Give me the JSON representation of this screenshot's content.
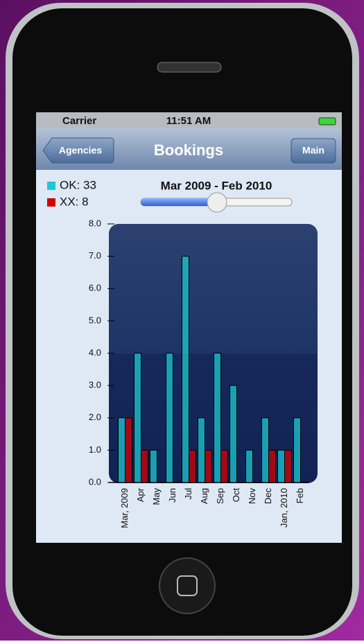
{
  "status_bar": {
    "carrier": "Carrier",
    "time": "11:51 AM"
  },
  "nav_bar": {
    "back_button": "Agencies",
    "title": "Bookings",
    "right_button": "Main"
  },
  "chart_data": {
    "type": "bar",
    "subtitle": "Mar 2009 - Feb 2010",
    "categories": [
      "Mar, 2009",
      "Apr",
      "May",
      "Jun",
      "Jul",
      "Aug",
      "Sep",
      "Oct",
      "Nov",
      "Dec",
      "Jan, 2010",
      "Feb"
    ],
    "series": [
      {
        "name": "OK: 33",
        "color": "#1cc8d4",
        "values": [
          2,
          4,
          1,
          4,
          7,
          2,
          4,
          3,
          1,
          2,
          1,
          2
        ]
      },
      {
        "name": "XX: 8",
        "color": "#d40000",
        "values": [
          2,
          1,
          0,
          0,
          1,
          1,
          1,
          0,
          0,
          1,
          1,
          0
        ]
      }
    ],
    "ylim": [
      0,
      8
    ],
    "yticks": [
      {
        "value": 0,
        "label": "0.0"
      },
      {
        "value": 1,
        "label": "1.0"
      },
      {
        "value": 2,
        "label": "2.0"
      },
      {
        "value": 3,
        "label": "3.0"
      },
      {
        "value": 4,
        "label": "4.0"
      },
      {
        "value": 5,
        "label": "5.0"
      },
      {
        "value": 6,
        "label": "6.0"
      },
      {
        "value": 7,
        "label": "7.0"
      },
      {
        "value": 8,
        "label": "8.0"
      }
    ]
  }
}
